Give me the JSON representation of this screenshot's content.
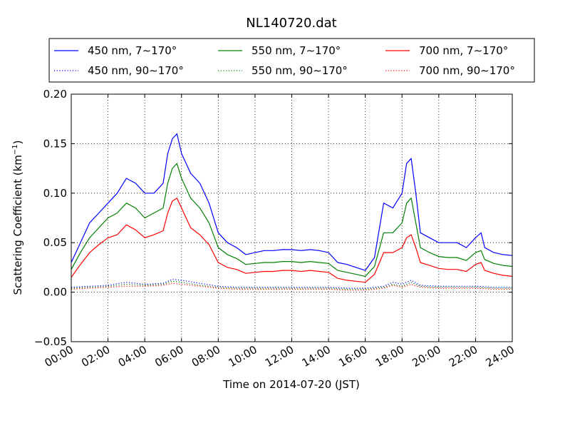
{
  "chart_data": {
    "type": "line",
    "title": "NL140720.dat",
    "xlabel": "Time on 2014-07-20 (JST)",
    "ylabel": "Scattering Coefficient (km",
    "ylabel_sup": "−1",
    "ylabel_end": ")",
    "xlim": [
      0,
      24
    ],
    "ylim": [
      -0.05,
      0.2
    ],
    "x_ticks": [
      0,
      2,
      4,
      6,
      8,
      10,
      12,
      14,
      16,
      18,
      20,
      22,
      24
    ],
    "x_tick_labels": [
      "00:00",
      "02:00",
      "04:00",
      "06:00",
      "08:00",
      "10:00",
      "12:00",
      "14:00",
      "16:00",
      "18:00",
      "20:00",
      "22:00",
      "24:00"
    ],
    "y_ticks": [
      -0.05,
      0.0,
      0.05,
      0.1,
      0.15,
      0.2
    ],
    "y_tick_labels": [
      "−0.05",
      "0.00",
      "0.05",
      "0.10",
      "0.15",
      "0.20"
    ],
    "grid": true,
    "legend_position": "top, above plot, 3 columns",
    "series": [
      {
        "name": "450 nm, 7∼170°",
        "color": "#0000ff",
        "style": "solid",
        "x": [
          0,
          0.5,
          1,
          1.5,
          2,
          2.5,
          3,
          3.5,
          4,
          4.5,
          5,
          5.25,
          5.5,
          5.75,
          6,
          6.5,
          7,
          7.5,
          8,
          8.5,
          9,
          9.5,
          10,
          10.5,
          11,
          11.5,
          12,
          12.5,
          13,
          13.5,
          14,
          14.5,
          15,
          15.5,
          16,
          16.5,
          17,
          17.5,
          18,
          18.25,
          18.5,
          18.75,
          19,
          19.5,
          20,
          20.5,
          21,
          21.5,
          22,
          22.3,
          22.5,
          23,
          23.5,
          24
        ],
        "y": [
          0.03,
          0.05,
          0.07,
          0.08,
          0.09,
          0.1,
          0.115,
          0.11,
          0.1,
          0.1,
          0.11,
          0.14,
          0.155,
          0.16,
          0.14,
          0.12,
          0.11,
          0.09,
          0.06,
          0.05,
          0.045,
          0.038,
          0.04,
          0.042,
          0.042,
          0.043,
          0.043,
          0.042,
          0.043,
          0.042,
          0.04,
          0.03,
          0.028,
          0.025,
          0.022,
          0.035,
          0.09,
          0.085,
          0.1,
          0.13,
          0.135,
          0.1,
          0.06,
          0.055,
          0.05,
          0.05,
          0.05,
          0.045,
          0.055,
          0.06,
          0.045,
          0.04,
          0.038,
          0.037
        ]
      },
      {
        "name": "550 nm, 7∼170°",
        "color": "#008000",
        "style": "solid",
        "x": [
          0,
          0.5,
          1,
          1.5,
          2,
          2.5,
          3,
          3.5,
          4,
          4.5,
          5,
          5.25,
          5.5,
          5.75,
          6,
          6.5,
          7,
          7.5,
          8,
          8.5,
          9,
          9.5,
          10,
          10.5,
          11,
          11.5,
          12,
          12.5,
          13,
          13.5,
          14,
          14.5,
          15,
          15.5,
          16,
          16.5,
          17,
          17.5,
          18,
          18.25,
          18.5,
          18.75,
          19,
          19.5,
          20,
          20.5,
          21,
          21.5,
          22,
          22.3,
          22.5,
          23,
          23.5,
          24
        ],
        "y": [
          0.023,
          0.04,
          0.055,
          0.065,
          0.075,
          0.08,
          0.09,
          0.085,
          0.075,
          0.08,
          0.085,
          0.11,
          0.125,
          0.13,
          0.115,
          0.095,
          0.085,
          0.07,
          0.045,
          0.038,
          0.034,
          0.028,
          0.029,
          0.03,
          0.03,
          0.031,
          0.031,
          0.03,
          0.031,
          0.03,
          0.029,
          0.022,
          0.02,
          0.018,
          0.016,
          0.026,
          0.06,
          0.06,
          0.07,
          0.09,
          0.095,
          0.07,
          0.045,
          0.04,
          0.036,
          0.035,
          0.035,
          0.032,
          0.04,
          0.042,
          0.033,
          0.029,
          0.027,
          0.026
        ]
      },
      {
        "name": "700 nm, 7∼170°",
        "color": "#ff0000",
        "style": "solid",
        "x": [
          0,
          0.5,
          1,
          1.5,
          2,
          2.5,
          3,
          3.5,
          4,
          4.5,
          5,
          5.25,
          5.5,
          5.75,
          6,
          6.5,
          7,
          7.5,
          8,
          8.5,
          9,
          9.5,
          10,
          10.5,
          11,
          11.5,
          12,
          12.5,
          13,
          13.5,
          14,
          14.5,
          15,
          15.5,
          16,
          16.5,
          17,
          17.5,
          18,
          18.25,
          18.5,
          18.75,
          19,
          19.5,
          20,
          20.5,
          21,
          21.5,
          22,
          22.3,
          22.5,
          23,
          23.5,
          24
        ],
        "y": [
          0.015,
          0.028,
          0.04,
          0.048,
          0.055,
          0.058,
          0.068,
          0.063,
          0.055,
          0.058,
          0.062,
          0.08,
          0.092,
          0.095,
          0.085,
          0.065,
          0.058,
          0.048,
          0.03,
          0.025,
          0.023,
          0.019,
          0.02,
          0.021,
          0.021,
          0.022,
          0.022,
          0.021,
          0.022,
          0.021,
          0.02,
          0.014,
          0.012,
          0.011,
          0.01,
          0.018,
          0.04,
          0.04,
          0.045,
          0.055,
          0.058,
          0.045,
          0.03,
          0.027,
          0.024,
          0.023,
          0.023,
          0.021,
          0.028,
          0.03,
          0.022,
          0.019,
          0.017,
          0.016
        ]
      },
      {
        "name": "450 nm, 90∼170°",
        "color": "#0000ff",
        "style": "dotted",
        "x": [
          0,
          1,
          2,
          3,
          4,
          5,
          5.5,
          6,
          7,
          8,
          9,
          10,
          12,
          14,
          15,
          16,
          17,
          17.5,
          18,
          18.5,
          19,
          20,
          21,
          22,
          23,
          24
        ],
        "y": [
          0.005,
          0.006,
          0.007,
          0.01,
          0.008,
          0.009,
          0.013,
          0.012,
          0.009,
          0.006,
          0.005,
          0.005,
          0.005,
          0.005,
          0.004,
          0.004,
          0.006,
          0.01,
          0.008,
          0.012,
          0.007,
          0.006,
          0.006,
          0.006,
          0.005,
          0.005
        ]
      },
      {
        "name": "550 nm, 90∼170°",
        "color": "#008000",
        "style": "dotted",
        "x": [
          0,
          1,
          2,
          3,
          4,
          5,
          5.5,
          6,
          7,
          8,
          9,
          10,
          12,
          14,
          15,
          16,
          17,
          17.5,
          18,
          18.5,
          19,
          20,
          21,
          22,
          23,
          24
        ],
        "y": [
          0.004,
          0.005,
          0.006,
          0.008,
          0.007,
          0.008,
          0.011,
          0.01,
          0.007,
          0.005,
          0.004,
          0.004,
          0.004,
          0.004,
          0.003,
          0.003,
          0.005,
          0.008,
          0.006,
          0.01,
          0.006,
          0.005,
          0.005,
          0.005,
          0.004,
          0.004
        ]
      },
      {
        "name": "700 nm, 90∼170°",
        "color": "#ff0000",
        "style": "dotted",
        "x": [
          0,
          1,
          2,
          3,
          4,
          5,
          5.5,
          6,
          7,
          8,
          9,
          10,
          12,
          14,
          15,
          16,
          17,
          17.5,
          18,
          18.5,
          19,
          20,
          21,
          22,
          23,
          24
        ],
        "y": [
          0.003,
          0.004,
          0.005,
          0.006,
          0.006,
          0.007,
          0.009,
          0.008,
          0.006,
          0.004,
          0.003,
          0.003,
          0.003,
          0.003,
          0.002,
          0.002,
          0.004,
          0.007,
          0.005,
          0.008,
          0.005,
          0.004,
          0.004,
          0.004,
          0.003,
          0.003
        ]
      }
    ]
  }
}
